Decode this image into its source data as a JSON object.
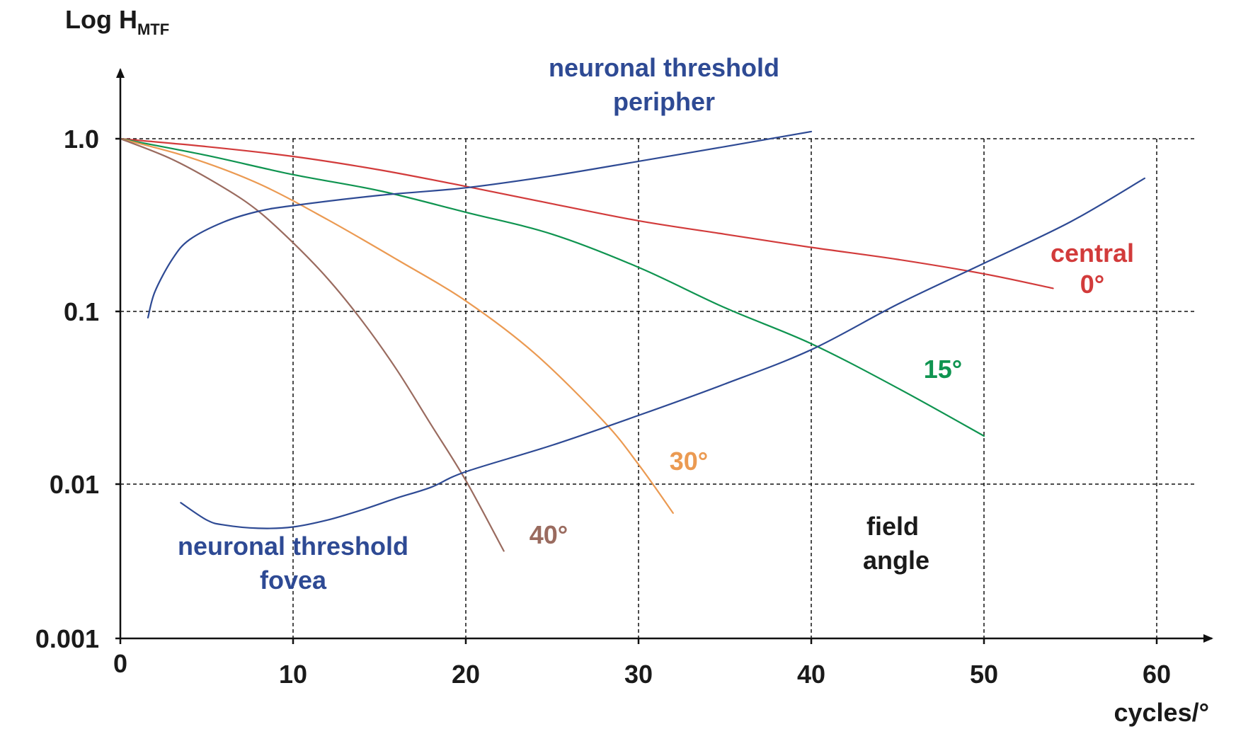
{
  "chart_data": {
    "type": "line",
    "title": "",
    "ylabel": {
      "main": "Log  H",
      "subscript": "MTF"
    },
    "xlabel": "cycles/°",
    "xlim": [
      0,
      60
    ],
    "ylim": [
      0.001,
      1.0
    ],
    "y_scale": "log",
    "grid": true,
    "x_ticks": [
      {
        "value": 0,
        "label": "0"
      },
      {
        "value": 10,
        "label": "10"
      },
      {
        "value": 20,
        "label": "20"
      },
      {
        "value": 30,
        "label": "30"
      },
      {
        "value": 40,
        "label": "40"
      },
      {
        "value": 50,
        "label": "50"
      },
      {
        "value": 60,
        "label": "60"
      }
    ],
    "y_ticks": [
      {
        "value": 1.0,
        "label": "1.0"
      },
      {
        "value": 0.1,
        "label": "0.1"
      },
      {
        "value": 0.01,
        "label": "0.01"
      },
      {
        "value": 0.001,
        "label": "0.001"
      }
    ],
    "colors": {
      "axis": "#111111",
      "grid": "#111111",
      "text": "#1a1a1a",
      "central": "#d23b3b",
      "deg15": "#0f9450",
      "deg30": "#eb9a52",
      "deg40": "#9a6b5f",
      "neuronal": "#2e4a94"
    },
    "series": [
      {
        "name": "central 0°",
        "label_lines": [
          "central",
          "0°"
        ],
        "color": "#d23b3b",
        "points": [
          [
            0,
            1.0
          ],
          [
            5,
            0.9
          ],
          [
            10,
            0.79
          ],
          [
            15,
            0.66
          ],
          [
            20,
            0.53
          ],
          [
            25,
            0.42
          ],
          [
            30,
            0.335
          ],
          [
            35,
            0.28
          ],
          [
            40,
            0.235
          ],
          [
            45,
            0.2
          ],
          [
            50,
            0.165
          ],
          [
            54,
            0.136
          ]
        ]
      },
      {
        "name": "15°",
        "label_lines": [
          "15°"
        ],
        "color": "#0f9450",
        "points": [
          [
            0,
            1.0
          ],
          [
            5,
            0.8
          ],
          [
            10,
            0.62
          ],
          [
            15,
            0.5
          ],
          [
            20,
            0.375
          ],
          [
            25,
            0.28
          ],
          [
            30,
            0.18
          ],
          [
            35,
            0.105
          ],
          [
            40,
            0.065
          ],
          [
            45,
            0.036
          ],
          [
            50,
            0.019
          ]
        ]
      },
      {
        "name": "30°",
        "label_lines": [
          "30°"
        ],
        "color": "#eb9a52",
        "points": [
          [
            0,
            1.0
          ],
          [
            4,
            0.78
          ],
          [
            8,
            0.55
          ],
          [
            12,
            0.34
          ],
          [
            16,
            0.2
          ],
          [
            20,
            0.115
          ],
          [
            24,
            0.057
          ],
          [
            28,
            0.023
          ],
          [
            30,
            0.013
          ],
          [
            32,
            0.0068
          ]
        ]
      },
      {
        "name": "40°",
        "label_lines": [
          "40°"
        ],
        "color": "#9a6b5f",
        "points": [
          [
            0,
            1.0
          ],
          [
            3,
            0.76
          ],
          [
            6,
            0.52
          ],
          [
            8,
            0.38
          ],
          [
            10,
            0.25
          ],
          [
            12,
            0.155
          ],
          [
            14,
            0.088
          ],
          [
            16,
            0.046
          ],
          [
            18,
            0.022
          ],
          [
            20,
            0.0105
          ],
          [
            22.2,
            0.0041
          ]
        ]
      },
      {
        "name": "neuronal threshold fovea",
        "label_lines": [
          "neuronal threshold",
          "fovea"
        ],
        "color": "#2e4a94",
        "points": [
          [
            3.5,
            0.0078
          ],
          [
            5,
            0.0062
          ],
          [
            6,
            0.0058
          ],
          [
            8,
            0.00555
          ],
          [
            10,
            0.00565
          ],
          [
            12,
            0.0062
          ],
          [
            14,
            0.0071
          ],
          [
            16,
            0.0083
          ],
          [
            18,
            0.0096
          ],
          [
            20,
            0.0118
          ],
          [
            25,
            0.0168
          ],
          [
            30,
            0.025
          ],
          [
            35,
            0.038
          ],
          [
            40,
            0.06
          ],
          [
            45,
            0.11
          ],
          [
            50,
            0.19
          ],
          [
            55,
            0.33
          ],
          [
            59.3,
            0.59
          ]
        ]
      },
      {
        "name": "neuronal threshold peripher",
        "label_lines": [
          "neuronal threshold",
          "peripher"
        ],
        "color": "#2e4a94",
        "points": [
          [
            1.6,
            0.092
          ],
          [
            2,
            0.13
          ],
          [
            3,
            0.2
          ],
          [
            4,
            0.26
          ],
          [
            6,
            0.33
          ],
          [
            8,
            0.38
          ],
          [
            10,
            0.41
          ],
          [
            15,
            0.47
          ],
          [
            20,
            0.52
          ],
          [
            25,
            0.61
          ],
          [
            30,
            0.74
          ],
          [
            35,
            0.9
          ],
          [
            40,
            1.1
          ]
        ]
      }
    ],
    "annotations": [
      {
        "text_lines": [
          "field",
          "angle"
        ]
      }
    ]
  }
}
